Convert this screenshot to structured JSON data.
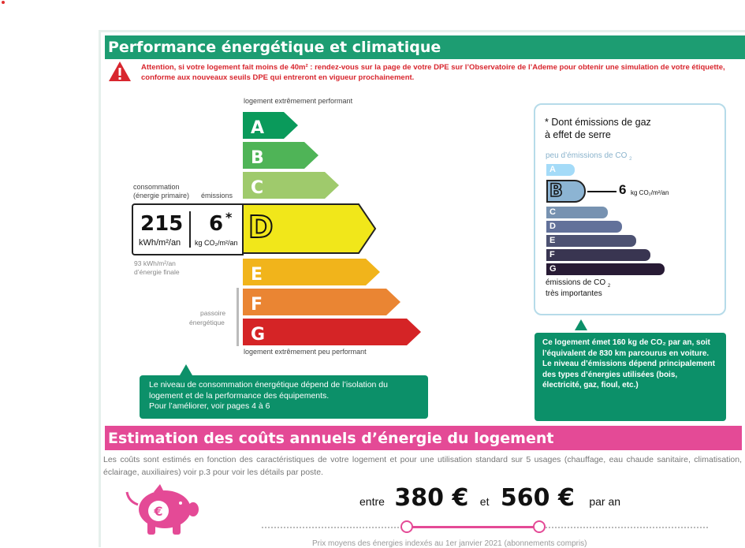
{
  "performance": {
    "title": "Performance énergétique et climatique",
    "alert": "Attention, si votre logement fait moins de 40m² : rendez-vous sur la page de votre DPE sur l’Observatoire de l’Ademe pour obtenir une simulation de votre étiquette, conforme aux nouveaux seuils DPE qui entreront en vigueur prochainement.",
    "top_label": "logement extrêmement performant",
    "bottom_label": "logement extrêmement peu performant",
    "consumption_label": "consommation\n(énergie primaire)",
    "emissions_label": "émissions",
    "consumption_value": "215",
    "consumption_unit": "kWh/m²/an",
    "emissions_value": "6",
    "emissions_star": "*",
    "emissions_unit": "kg CO₂/m²/an",
    "current_class": "D",
    "final_energy_line1": "93 kWh/m²/an",
    "final_energy_line2": "d’énergie finale",
    "passoire_line1": "passoire",
    "passoire_line2": "énergétique",
    "classes": [
      {
        "letter": "A",
        "color": "#0a9a5b",
        "level": 1
      },
      {
        "letter": "B",
        "color": "#4fb457",
        "level": 2
      },
      {
        "letter": "C",
        "color": "#9fca6c",
        "level": 3
      },
      {
        "letter": "D",
        "color": "#f1e71a",
        "level": 4
      },
      {
        "letter": "E",
        "color": "#f1b41b",
        "level": 5
      },
      {
        "letter": "F",
        "color": "#ea8533",
        "level": 6
      },
      {
        "letter": "G",
        "color": "#d52426",
        "level": 7
      }
    ],
    "left_info": "Le niveau de consommation énergétique dépend de l’isolation du logement et de la performance des équipements.\nPour l’améliorer, voir pages 4 à 6"
  },
  "ges": {
    "title_line1": "* Dont émissions de gaz",
    "title_line2": "à effet de serre",
    "top_label": "peu d’émissions de CO",
    "top_sub": "2",
    "bottom_label": "émissions de CO",
    "bottom_sub": "2",
    "bottom_label2": "très importantes",
    "value": "6",
    "unit": "kg CO₂/m²/an",
    "current_class": "B",
    "classes": [
      {
        "letter": "A",
        "color": "#a4dbf8",
        "level": 1
      },
      {
        "letter": "B",
        "color": "#8cb4d3",
        "level": 2
      },
      {
        "letter": "C",
        "color": "#7792b1",
        "level": 3
      },
      {
        "letter": "D",
        "color": "#62719a",
        "level": 4
      },
      {
        "letter": "E",
        "color": "#4d5272",
        "level": 5
      },
      {
        "letter": "F",
        "color": "#393551",
        "level": 6
      },
      {
        "letter": "G",
        "color": "#281b35",
        "level": 7
      }
    ],
    "info": "Ce logement émet 160 kg de CO₂ par an, soit l’équivalent de 830 km parcourus en voiture.\nLe niveau d’émissions dépend principalement des types d’énergies utilisées (bois, électricité, gaz, fioul, etc.)"
  },
  "costs": {
    "title": "Estimation des coûts annuels d’énergie du logement",
    "description": "Les coûts sont estimés en fonction des caractéristiques de votre logement et pour une utilisation standard sur 5 usages (chauffage, eau chaude sanitaire, climatisation, éclairage, auxiliaires) voir p.3 pour voir les détails par poste.",
    "between": "entre",
    "min": "380 €",
    "and": "et",
    "max": "560 €",
    "per_year": "par an",
    "footnote": "Prix moyens des énergies indexés au 1er janvier 2021 (abonnements compris)"
  }
}
